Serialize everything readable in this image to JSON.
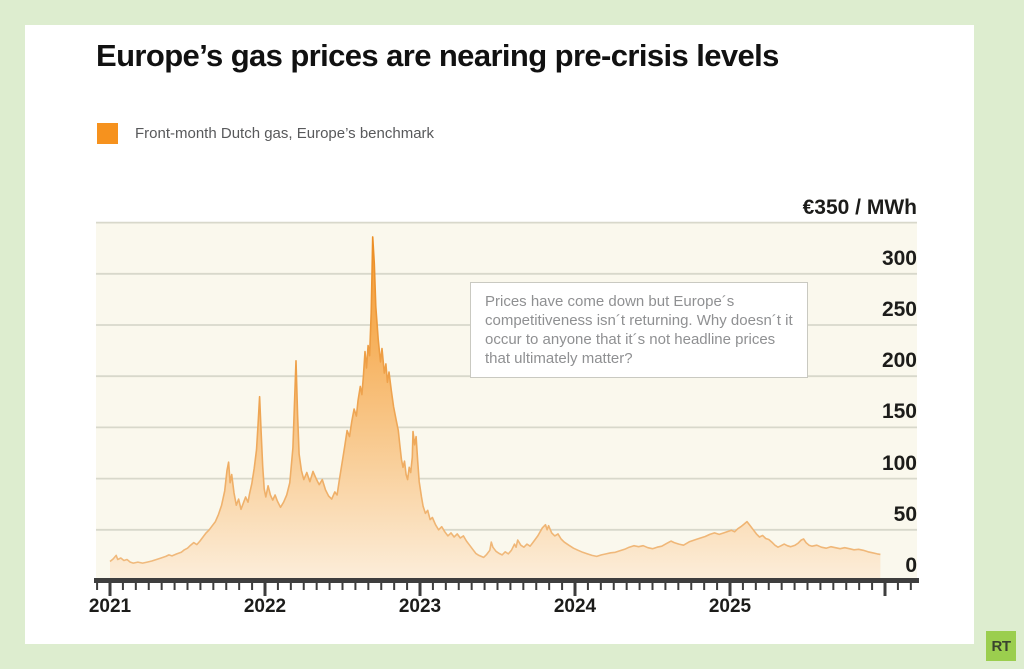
{
  "header": {
    "title": "Europe’s gas prices are nearing pre-crisis levels"
  },
  "legend": {
    "label": "Front-month Dutch gas, Europe’s benchmark"
  },
  "annotation": {
    "text": "Prices have come down but Europe´s competitiveness isn´t returning. Why doesn´t it occur to anyone that it´s not headline prices that ultimately matter?"
  },
  "footer": {
    "logo_text": "RT"
  },
  "colors": {
    "page_bg": "#ddedcf",
    "card_bg": "#ffffff",
    "title": "#111111",
    "legend_text": "#58595b",
    "series_orange": "#f6921e",
    "area_top": "#f49a30",
    "area_mid1": "#f6ae57",
    "area_mid2": "#f9d09c",
    "area_bottom": "#fceedb",
    "line_top": "#ec8c20",
    "line_bottom": "#f0bc82",
    "plot_bg": "#faf8ed",
    "gridline": "#d8d8cb",
    "axis": "#3e3e3e",
    "tick_label": "#1c1c1a",
    "annotation_text": "#8f9092",
    "annotation_border": "#c9c9c1",
    "logo_bg": "#9bce4e",
    "logo_text": "#3a442e"
  },
  "chart_data": {
    "type": "area",
    "title": "Europe’s gas prices are nearing pre-crisis levels",
    "xlabel": "",
    "ylabel": "€ / MWh",
    "grid": true,
    "legend_position": "top-left",
    "x_domain": [
      2021.0,
      2026.2
    ],
    "y_domain": [
      0,
      350
    ],
    "yticks": [
      {
        "value": 350,
        "label": "€350 / MWh"
      },
      {
        "value": 300,
        "label": "300"
      },
      {
        "value": 250,
        "label": "250"
      },
      {
        "value": 200,
        "label": "200"
      },
      {
        "value": 150,
        "label": "150"
      },
      {
        "value": 100,
        "label": "100"
      },
      {
        "value": 50,
        "label": "50"
      },
      {
        "value": 0,
        "label": "0"
      }
    ],
    "xticks": [
      {
        "value": 2021,
        "label": "2021"
      },
      {
        "value": 2022,
        "label": "2022"
      },
      {
        "value": 2023,
        "label": "2023"
      },
      {
        "value": 2024,
        "label": "2024"
      },
      {
        "value": 2025,
        "label": "2025"
      }
    ],
    "series": [
      {
        "name": "Front-month Dutch gas, Europe's benchmark",
        "unit": "EUR/MWh",
        "points": [
          [
            2021.0,
            19
          ],
          [
            2021.02,
            21.5
          ],
          [
            2021.04,
            25
          ],
          [
            2021.05,
            21
          ],
          [
            2021.07,
            22.5
          ],
          [
            2021.09,
            20
          ],
          [
            2021.11,
            21
          ],
          [
            2021.13,
            18.5
          ],
          [
            2021.15,
            17.5
          ],
          [
            2021.18,
            18.5
          ],
          [
            2021.21,
            17.5
          ],
          [
            2021.24,
            18.5
          ],
          [
            2021.27,
            19.5
          ],
          [
            2021.3,
            21
          ],
          [
            2021.33,
            22.5
          ],
          [
            2021.36,
            24
          ],
          [
            2021.38,
            25.5
          ],
          [
            2021.4,
            24.5
          ],
          [
            2021.43,
            26.5
          ],
          [
            2021.46,
            28
          ],
          [
            2021.48,
            30.5
          ],
          [
            2021.5,
            32
          ],
          [
            2021.52,
            35
          ],
          [
            2021.54,
            37.5
          ],
          [
            2021.56,
            35.5
          ],
          [
            2021.58,
            39
          ],
          [
            2021.6,
            43
          ],
          [
            2021.62,
            47
          ],
          [
            2021.64,
            50
          ],
          [
            2021.66,
            54
          ],
          [
            2021.68,
            58
          ],
          [
            2021.7,
            65
          ],
          [
            2021.72,
            74
          ],
          [
            2021.74,
            88
          ],
          [
            2021.755,
            108
          ],
          [
            2021.765,
            116
          ],
          [
            2021.775,
            96
          ],
          [
            2021.785,
            104
          ],
          [
            2021.8,
            86
          ],
          [
            2021.815,
            74
          ],
          [
            2021.83,
            80
          ],
          [
            2021.845,
            70
          ],
          [
            2021.86,
            76
          ],
          [
            2021.875,
            82
          ],
          [
            2021.89,
            77
          ],
          [
            2021.9,
            85
          ],
          [
            2021.915,
            95
          ],
          [
            2021.93,
            110
          ],
          [
            2021.945,
            128
          ],
          [
            2021.955,
            152
          ],
          [
            2021.965,
            180
          ],
          [
            2021.975,
            146
          ],
          [
            2021.985,
            112
          ],
          [
            2021.995,
            90
          ],
          [
            2022.005,
            82
          ],
          [
            2022.02,
            93
          ],
          [
            2022.035,
            84
          ],
          [
            2022.05,
            79
          ],
          [
            2022.065,
            84
          ],
          [
            2022.08,
            78
          ],
          [
            2022.1,
            72
          ],
          [
            2022.12,
            77
          ],
          [
            2022.14,
            84
          ],
          [
            2022.16,
            96
          ],
          [
            2022.18,
            130
          ],
          [
            2022.2,
            215
          ],
          [
            2022.21,
            162
          ],
          [
            2022.22,
            124
          ],
          [
            2022.235,
            108
          ],
          [
            2022.25,
            99
          ],
          [
            2022.27,
            106
          ],
          [
            2022.29,
            97
          ],
          [
            2022.31,
            107
          ],
          [
            2022.33,
            100
          ],
          [
            2022.35,
            94
          ],
          [
            2022.37,
            99
          ],
          [
            2022.39,
            89
          ],
          [
            2022.41,
            83
          ],
          [
            2022.43,
            80
          ],
          [
            2022.45,
            87
          ],
          [
            2022.465,
            84
          ],
          [
            2022.48,
            99
          ],
          [
            2022.5,
            118
          ],
          [
            2022.515,
            132
          ],
          [
            2022.53,
            147
          ],
          [
            2022.545,
            141
          ],
          [
            2022.56,
            156
          ],
          [
            2022.575,
            168
          ],
          [
            2022.59,
            161
          ],
          [
            2022.6,
            176
          ],
          [
            2022.615,
            190
          ],
          [
            2022.625,
            182
          ],
          [
            2022.635,
            200
          ],
          [
            2022.645,
            224
          ],
          [
            2022.655,
            208
          ],
          [
            2022.665,
            230
          ],
          [
            2022.675,
            220
          ],
          [
            2022.685,
            262
          ],
          [
            2022.69,
            300
          ],
          [
            2022.695,
            336
          ],
          [
            2022.705,
            310
          ],
          [
            2022.715,
            268
          ],
          [
            2022.73,
            236
          ],
          [
            2022.745,
            214
          ],
          [
            2022.755,
            227
          ],
          [
            2022.77,
            203
          ],
          [
            2022.78,
            212
          ],
          [
            2022.79,
            194
          ],
          [
            2022.8,
            204
          ],
          [
            2022.815,
            186
          ],
          [
            2022.83,
            170
          ],
          [
            2022.845,
            158
          ],
          [
            2022.86,
            147
          ],
          [
            2022.87,
            133
          ],
          [
            2022.88,
            119
          ],
          [
            2022.89,
            111
          ],
          [
            2022.9,
            117
          ],
          [
            2022.91,
            104
          ],
          [
            2022.92,
            99
          ],
          [
            2022.93,
            111
          ],
          [
            2022.94,
            106
          ],
          [
            2022.95,
            121
          ],
          [
            2022.955,
            146
          ],
          [
            2022.965,
            133
          ],
          [
            2022.975,
            141
          ],
          [
            2022.985,
            117
          ],
          [
            2022.995,
            97
          ],
          [
            2023.01,
            82
          ],
          [
            2023.02,
            73
          ],
          [
            2023.035,
            66
          ],
          [
            2023.05,
            69
          ],
          [
            2023.065,
            60
          ],
          [
            2023.08,
            62
          ],
          [
            2023.1,
            55
          ],
          [
            2023.12,
            50
          ],
          [
            2023.14,
            53
          ],
          [
            2023.16,
            48
          ],
          [
            2023.18,
            44
          ],
          [
            2023.2,
            47
          ],
          [
            2023.22,
            43
          ],
          [
            2023.24,
            46
          ],
          [
            2023.26,
            42
          ],
          [
            2023.28,
            44
          ],
          [
            2023.3,
            39
          ],
          [
            2023.32,
            35
          ],
          [
            2023.34,
            31
          ],
          [
            2023.36,
            27
          ],
          [
            2023.38,
            25
          ],
          [
            2023.41,
            23
          ],
          [
            2023.43,
            26
          ],
          [
            2023.45,
            30
          ],
          [
            2023.46,
            38
          ],
          [
            2023.47,
            33
          ],
          [
            2023.49,
            29
          ],
          [
            2023.51,
            27
          ],
          [
            2023.53,
            25.5
          ],
          [
            2023.55,
            28.5
          ],
          [
            2023.57,
            26.5
          ],
          [
            2023.59,
            30
          ],
          [
            2023.61,
            36
          ],
          [
            2023.62,
            33
          ],
          [
            2023.63,
            40
          ],
          [
            2023.65,
            35
          ],
          [
            2023.67,
            33
          ],
          [
            2023.69,
            36
          ],
          [
            2023.71,
            34
          ],
          [
            2023.73,
            38
          ],
          [
            2023.76,
            44
          ],
          [
            2023.79,
            52
          ],
          [
            2023.81,
            55
          ],
          [
            2023.82,
            50
          ],
          [
            2023.83,
            54
          ],
          [
            2023.85,
            47
          ],
          [
            2023.87,
            44
          ],
          [
            2023.89,
            46
          ],
          [
            2023.91,
            41
          ],
          [
            2023.93,
            38
          ],
          [
            2023.96,
            35
          ],
          [
            2023.99,
            32
          ],
          [
            2024.02,
            30
          ],
          [
            2024.05,
            28
          ],
          [
            2024.08,
            26.5
          ],
          [
            2024.11,
            25
          ],
          [
            2024.14,
            24
          ],
          [
            2024.17,
            25.5
          ],
          [
            2024.2,
            26.5
          ],
          [
            2024.23,
            27.5
          ],
          [
            2024.26,
            28
          ],
          [
            2024.29,
            29.5
          ],
          [
            2024.32,
            31
          ],
          [
            2024.35,
            33
          ],
          [
            2024.38,
            34.5
          ],
          [
            2024.41,
            33.5
          ],
          [
            2024.44,
            34.5
          ],
          [
            2024.47,
            32.5
          ],
          [
            2024.5,
            31.5
          ],
          [
            2024.53,
            33
          ],
          [
            2024.56,
            34
          ],
          [
            2024.59,
            36.5
          ],
          [
            2024.62,
            39
          ],
          [
            2024.64,
            37.5
          ],
          [
            2024.67,
            36
          ],
          [
            2024.7,
            35
          ],
          [
            2024.74,
            38.5
          ],
          [
            2024.78,
            40.5
          ],
          [
            2024.81,
            42
          ],
          [
            2024.84,
            43.5
          ],
          [
            2024.87,
            45.5
          ],
          [
            2024.9,
            47
          ],
          [
            2024.93,
            45.5
          ],
          [
            2024.96,
            47
          ],
          [
            2024.99,
            48.5
          ],
          [
            2025.01,
            49.5
          ],
          [
            2025.03,
            48
          ],
          [
            2025.05,
            51
          ],
          [
            2025.07,
            53
          ],
          [
            2025.09,
            55.5
          ],
          [
            2025.11,
            58
          ],
          [
            2025.13,
            54
          ],
          [
            2025.15,
            50
          ],
          [
            2025.17,
            46
          ],
          [
            2025.19,
            43
          ],
          [
            2025.21,
            44.5
          ],
          [
            2025.23,
            41.5
          ],
          [
            2025.25,
            40.5
          ],
          [
            2025.27,
            38
          ],
          [
            2025.29,
            35
          ],
          [
            2025.31,
            33
          ],
          [
            2025.33,
            34.5
          ],
          [
            2025.35,
            36
          ],
          [
            2025.37,
            34.5
          ],
          [
            2025.39,
            33.5
          ],
          [
            2025.42,
            35
          ],
          [
            2025.44,
            37
          ],
          [
            2025.46,
            40
          ],
          [
            2025.475,
            41
          ],
          [
            2025.49,
            37.5
          ],
          [
            2025.51,
            35
          ],
          [
            2025.53,
            34
          ],
          [
            2025.56,
            35
          ],
          [
            2025.59,
            33
          ],
          [
            2025.62,
            32
          ],
          [
            2025.65,
            33.5
          ],
          [
            2025.68,
            32.5
          ],
          [
            2025.71,
            31.5
          ],
          [
            2025.74,
            32.5
          ],
          [
            2025.77,
            31.5
          ],
          [
            2025.8,
            30.5
          ],
          [
            2025.83,
            31
          ],
          [
            2025.86,
            30
          ],
          [
            2025.89,
            28.5
          ],
          [
            2025.92,
            27.5
          ],
          [
            2025.95,
            26.5
          ],
          [
            2025.97,
            26
          ]
        ]
      }
    ]
  }
}
